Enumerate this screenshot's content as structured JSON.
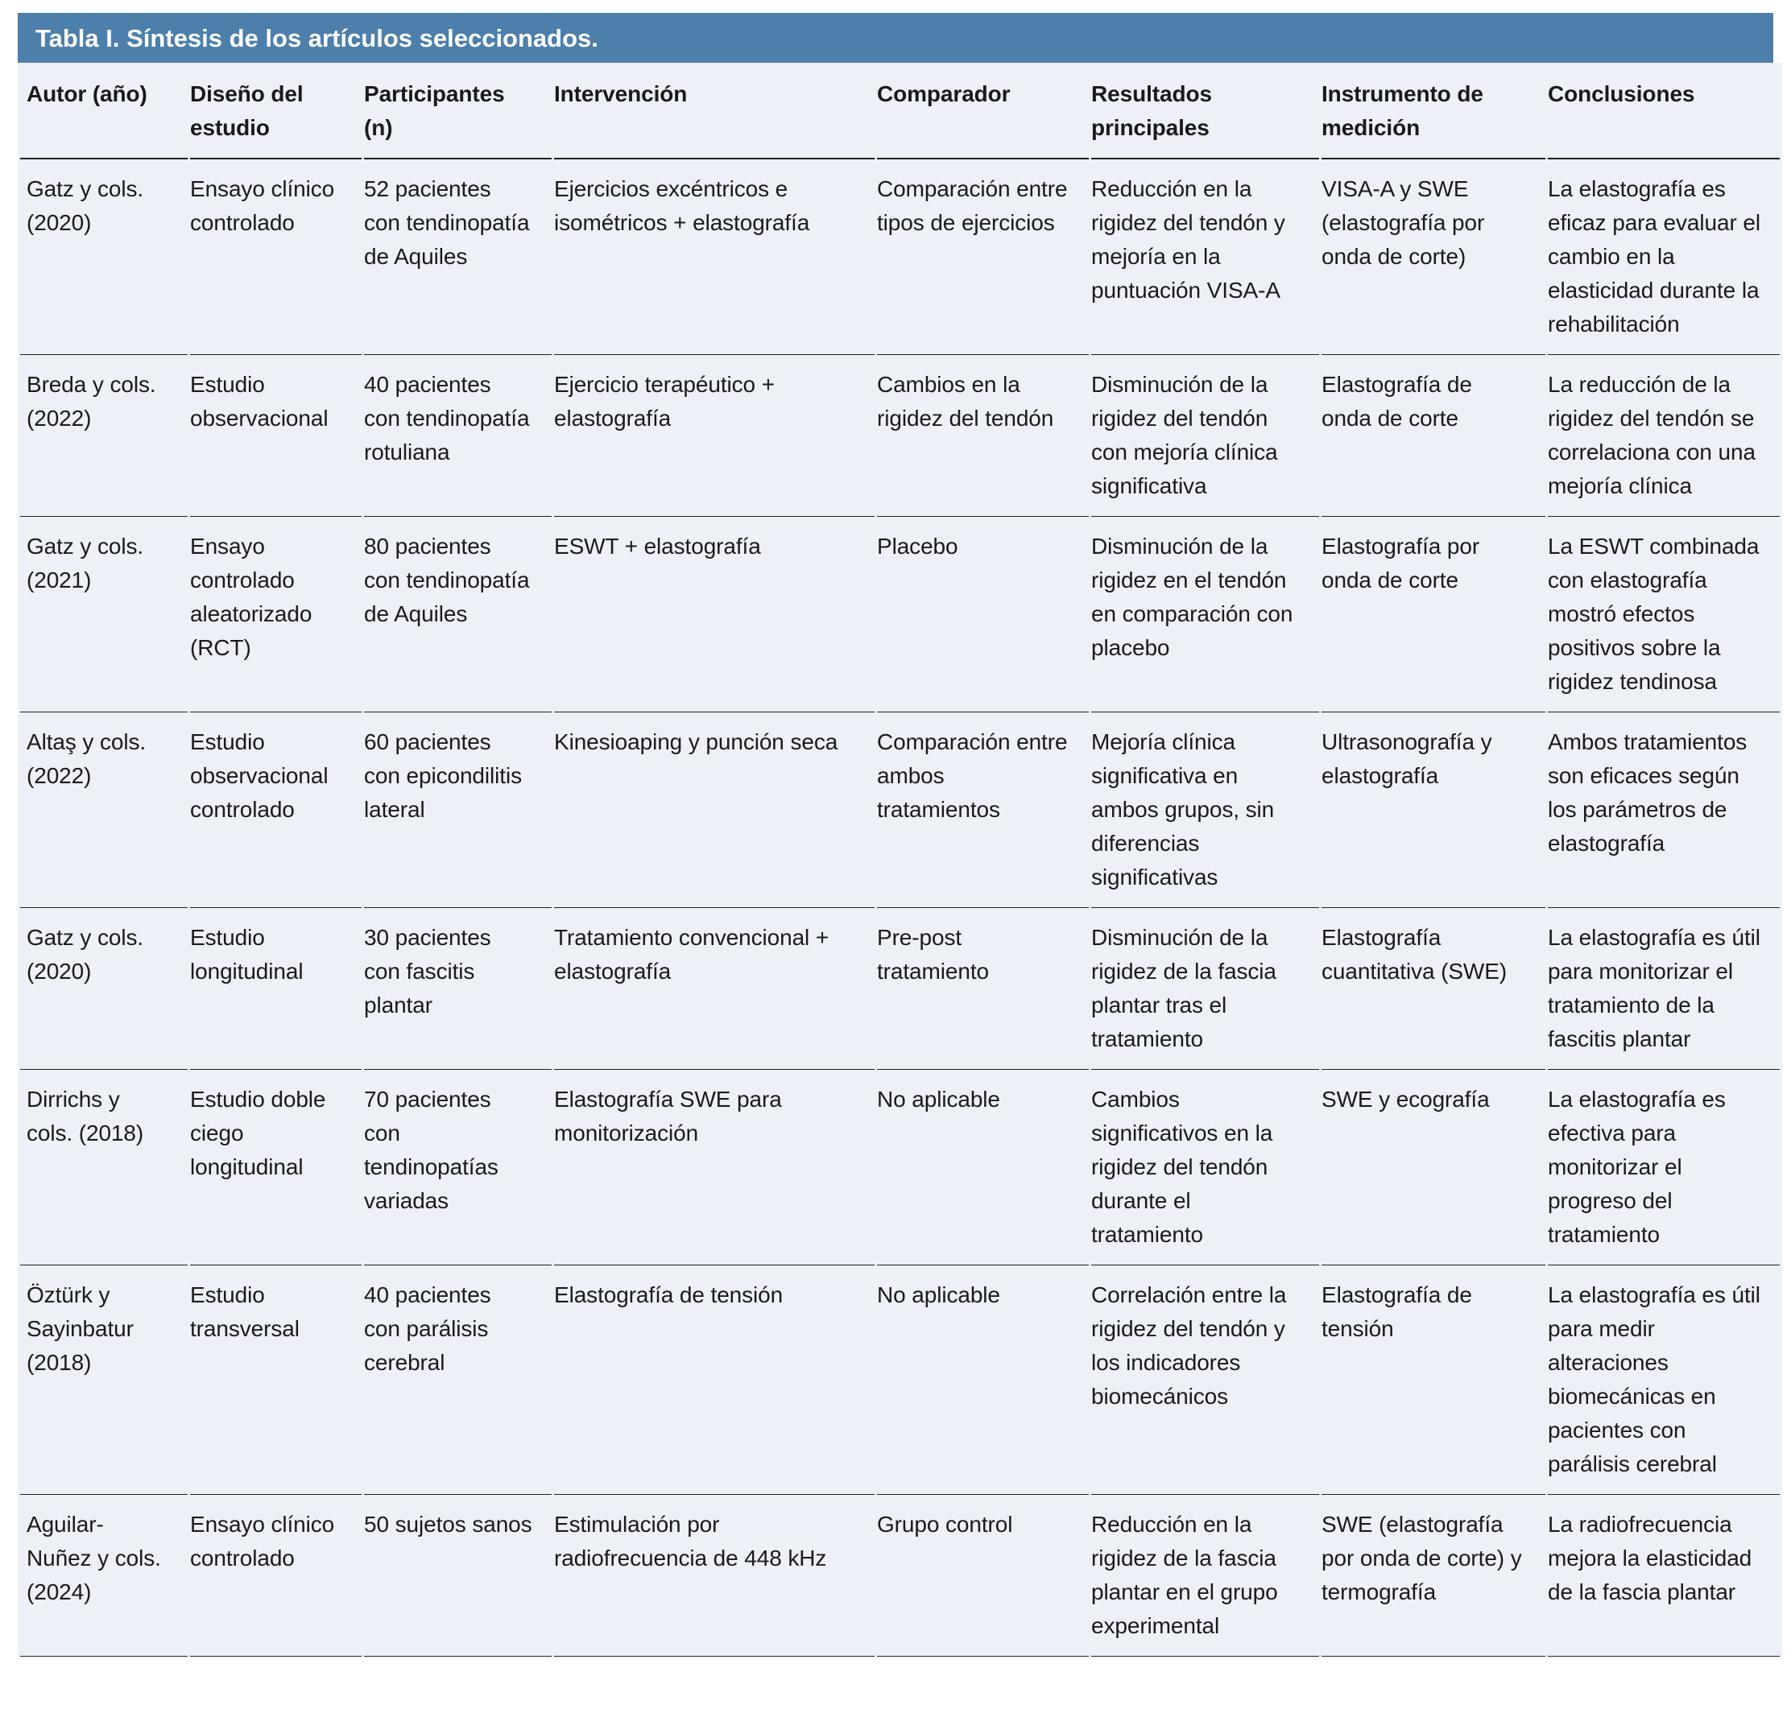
{
  "colors": {
    "header_bar": "#4d7fab",
    "row_bg": "#edf0f6",
    "rule": "#1f1f1f",
    "text": "#1a1a1a"
  },
  "table": {
    "title": "Tabla I. Síntesis de los artículos seleccionados.",
    "columns": [
      "Autor (año)",
      "Diseño del estudio",
      "Participantes (n)",
      "Intervención",
      "Comparador",
      "Resultados principales",
      "Instrumento de medición",
      "Conclusiones"
    ],
    "rows": [
      [
        "Gatz y cols. (2020)",
        "Ensayo clínico controlado",
        "52 pacientes con tendinopatía de Aquiles",
        "Ejercicios excéntricos e isométricos + elastografía",
        "Comparación entre tipos de ejercicios",
        "Reducción en la rigidez del tendón y mejoría en la puntuación VISA-A",
        "VISA-A y SWE (elastografía por onda de corte)",
        "La elastografía es eficaz para evaluar el cambio en la elasticidad durante la rehabilitación"
      ],
      [
        "Breda y cols. (2022)",
        "Estudio observacional",
        "40 pacientes con tendinopatía rotuliana",
        "Ejercicio terapéutico + elastografía",
        "Cambios en la rigidez del tendón",
        "Disminución de la rigidez del tendón con mejoría clínica significativa",
        "Elastografía de onda de corte",
        "La reducción de la rigidez del tendón se correlaciona con una mejoría clínica"
      ],
      [
        "Gatz y cols. (2021)",
        "Ensayo controlado aleatorizado (RCT)",
        "80 pacientes con tendinopatía de Aquiles",
        "ESWT + elastografía",
        "Placebo",
        "Disminución de la rigidez en el tendón en comparación con placebo",
        "Elastografía por onda de corte",
        "La ESWT combinada con elastografía mostró efectos positivos sobre la rigidez tendinosa"
      ],
      [
        "Altaş y cols. (2022)",
        "Estudio observacional controlado",
        "60 pacientes con epicondilitis lateral",
        "Kinesioaping y punción seca",
        "Comparación entre ambos tratamientos",
        "Mejoría clínica significativa en ambos grupos, sin diferencias significativas",
        "Ultrasonografía y elastografía",
        "Ambos tratamientos son eficaces según los parámetros de elastografía"
      ],
      [
        "Gatz y cols. (2020)",
        "Estudio longitudinal",
        "30 pacientes con fascitis plantar",
        "Tratamiento convencional + elastografía",
        "Pre-post tratamiento",
        "Disminución de la rigidez de la fascia plantar tras el tratamiento",
        "Elastografía cuantitativa (SWE)",
        "La elastografía es útil para monitorizar el tratamiento de la fascitis plantar"
      ],
      [
        "Dirrichs y cols. (2018)",
        "Estudio doble ciego longitudinal",
        "70 pacientes con tendinopatías variadas",
        "Elastografía SWE para monitorización",
        "No aplicable",
        "Cambios significativos en la rigidez del tendón durante el tratamiento",
        "SWE y ecografía",
        "La elastografía es efectiva para monitorizar el progreso del tratamiento"
      ],
      [
        "Öztürk y Sayinbatur (2018)",
        "Estudio transversal",
        "40 pacientes con parálisis cerebral",
        "Elastografía de tensión",
        "No aplicable",
        "Correlación entre la rigidez del tendón y los indicadores biomecánicos",
        "Elastografía de tensión",
        "La elastografía es útil para medir alteraciones biomecánicas en pacientes con parálisis cerebral"
      ],
      [
        "Aguilar-Nuñez y cols. (2024)",
        "Ensayo clínico controlado",
        "50 sujetos sanos",
        "Estimulación por radiofrecuencia de 448 kHz",
        "Grupo control",
        "Reducción en la rigidez de la fascia plantar en el grupo experimental",
        "SWE (elastografía por onda de corte) y termografía",
        "La radiofrecuencia mejora la elasticidad de la fascia plantar"
      ]
    ]
  }
}
